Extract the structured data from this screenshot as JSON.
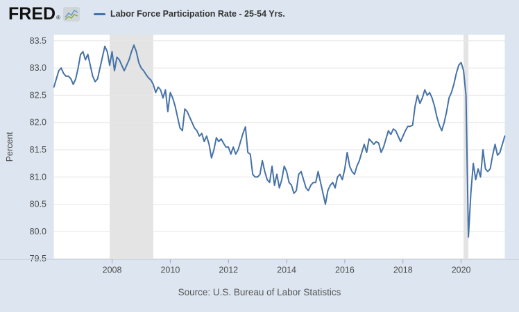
{
  "header": {
    "logo_text": "FRED",
    "logo_reg": "®",
    "legend": {
      "label": "Labor Force Participation Rate - 25-54 Yrs."
    }
  },
  "source_note": "Source: U.S. Bureau of Labor Statistics",
  "colors": {
    "background": "#dde6f0",
    "plot_background": "#ffffff",
    "line": "#4572a7",
    "gridline": "#e6e6e6",
    "recession_band": "#e4e4e4",
    "axis_line": "#c3cedd",
    "tick_mark": "#9aa8bc",
    "tick_label": "#4d4d4d",
    "axis_title": "#4d4d4d",
    "icon_blue": "#6d9bc3",
    "icon_green": "#8fae4e",
    "icon_bg": "#cfd6da"
  },
  "chart_data": {
    "type": "line",
    "series_name": "Labor Force Participation Rate - 25-54 Yrs.",
    "ylabel": "Percent",
    "frequency": "monthly",
    "start": "2006-01",
    "end": "2021-07",
    "ylim": [
      79.5,
      83.5
    ],
    "y_ticks": [
      83.5,
      83.0,
      82.5,
      82.0,
      81.5,
      81.0,
      80.5,
      80.0,
      79.5
    ],
    "x_ticks": [
      2008,
      2010,
      2012,
      2014,
      2016,
      2018,
      2020
    ],
    "grid": true,
    "legend_position": "top",
    "recession_bands": [
      {
        "start": "2007-12",
        "end": "2009-06"
      },
      {
        "start": "2020-02",
        "end": "2020-04"
      }
    ],
    "values": [
      82.65,
      82.8,
      82.95,
      83.0,
      82.9,
      82.85,
      82.85,
      82.8,
      82.7,
      82.8,
      83.0,
      83.25,
      83.3,
      83.15,
      83.25,
      83.05,
      82.85,
      82.75,
      82.8,
      83.0,
      83.2,
      83.4,
      83.3,
      83.05,
      83.3,
      82.95,
      83.2,
      83.15,
      83.05,
      82.95,
      83.05,
      83.15,
      83.3,
      83.42,
      83.3,
      83.1,
      83.0,
      82.95,
      82.88,
      82.82,
      82.78,
      82.7,
      82.55,
      82.65,
      82.6,
      82.45,
      82.6,
      82.2,
      82.55,
      82.45,
      82.3,
      82.1,
      81.9,
      81.85,
      82.25,
      82.2,
      82.1,
      82.0,
      81.9,
      81.85,
      81.75,
      81.8,
      81.65,
      81.75,
      81.6,
      81.35,
      81.5,
      81.72,
      81.65,
      81.7,
      81.62,
      81.55,
      81.55,
      81.42,
      81.55,
      81.42,
      81.5,
      81.65,
      81.8,
      81.92,
      81.45,
      81.42,
      81.05,
      81.0,
      81.0,
      81.05,
      81.3,
      81.1,
      80.95,
      80.9,
      81.2,
      80.85,
      81.05,
      80.8,
      80.95,
      81.2,
      81.1,
      80.9,
      80.85,
      80.7,
      80.75,
      81.05,
      81.1,
      80.95,
      80.8,
      80.75,
      80.85,
      80.9,
      80.9,
      81.1,
      80.9,
      80.7,
      80.5,
      80.75,
      80.85,
      80.9,
      80.8,
      81.0,
      81.05,
      80.95,
      81.15,
      81.45,
      81.2,
      81.1,
      81.05,
      81.2,
      81.3,
      81.45,
      81.6,
      81.45,
      81.7,
      81.65,
      81.6,
      81.65,
      81.62,
      81.45,
      81.55,
      81.7,
      81.85,
      81.78,
      81.88,
      81.85,
      81.75,
      81.65,
      81.75,
      81.85,
      81.93,
      81.93,
      81.95,
      82.3,
      82.5,
      82.35,
      82.45,
      82.6,
      82.5,
      82.55,
      82.45,
      82.3,
      82.1,
      81.95,
      81.85,
      82.0,
      82.2,
      82.45,
      82.55,
      82.7,
      82.9,
      83.05,
      83.1,
      82.95,
      82.5,
      79.9,
      80.7,
      81.25,
      80.95,
      81.15,
      81.0,
      81.5,
      81.15,
      81.1,
      81.15,
      81.4,
      81.6,
      81.4,
      81.45,
      81.6,
      81.75
    ]
  }
}
